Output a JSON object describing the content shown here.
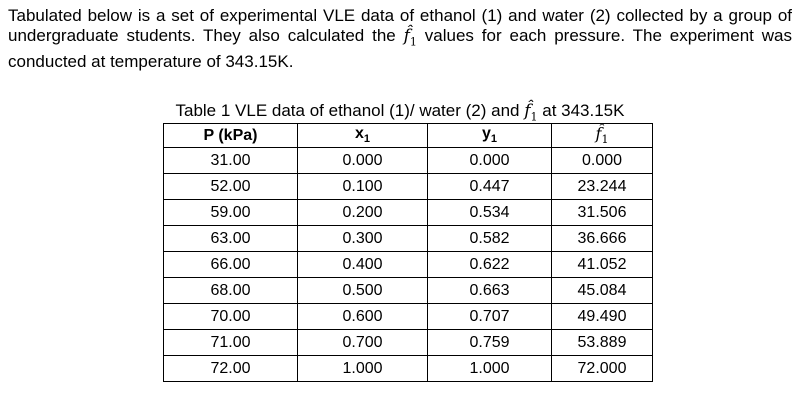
{
  "intro": {
    "before": "Tabulated below is a set of experimental VLE data of ethanol (1) and water (2) collected by a group of undergraduate students. They also calculated the ",
    "symbol": "f̂",
    "symbol_sub": "1",
    "after": " values for each pressure. The experiment was conducted at temperature of 343.15K."
  },
  "caption": {
    "before": "Table 1 VLE data of ethanol (1)/ water (2) and ",
    "symbol": "f̂",
    "symbol_sub": "1",
    "after": " at 343.15K"
  },
  "table": {
    "headers": {
      "p": "P (kPa)",
      "x": "x",
      "x_sub": "1",
      "y": "y",
      "y_sub": "1",
      "f": "f̂",
      "f_sub": "1"
    },
    "rows": [
      {
        "p": "31.00",
        "x": "0.000",
        "y": "0.000",
        "f": "0.000"
      },
      {
        "p": "52.00",
        "x": "0.100",
        "y": "0.447",
        "f": "23.244"
      },
      {
        "p": "59.00",
        "x": "0.200",
        "y": "0.534",
        "f": "31.506"
      },
      {
        "p": "63.00",
        "x": "0.300",
        "y": "0.582",
        "f": "36.666"
      },
      {
        "p": "66.00",
        "x": "0.400",
        "y": "0.622",
        "f": "41.052"
      },
      {
        "p": "68.00",
        "x": "0.500",
        "y": "0.663",
        "f": "45.084"
      },
      {
        "p": "70.00",
        "x": "0.600",
        "y": "0.707",
        "f": "49.490"
      },
      {
        "p": "71.00",
        "x": "0.700",
        "y": "0.759",
        "f": "53.889"
      },
      {
        "p": "72.00",
        "x": "1.000",
        "y": "1.000",
        "f": "72.000"
      }
    ]
  }
}
